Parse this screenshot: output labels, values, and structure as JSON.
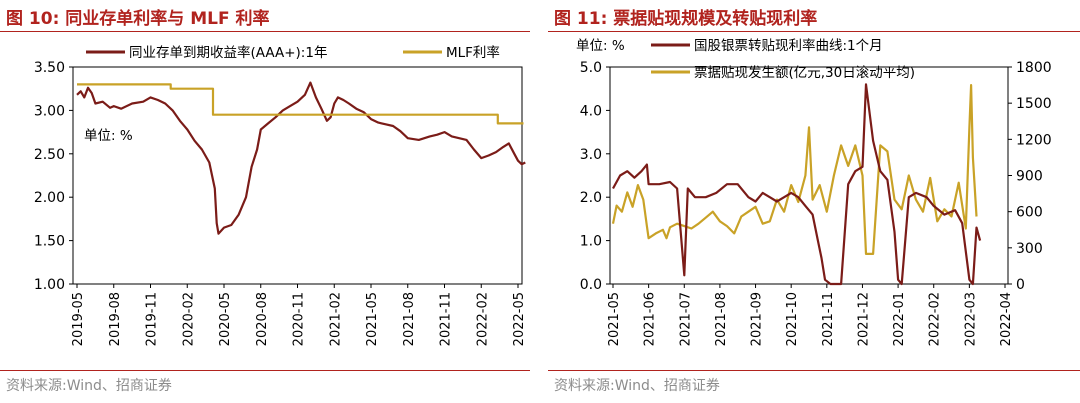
{
  "left": {
    "title": "图 10:  同业存单利率与 MLF 利率",
    "source": "资料来源:Wind、招商证券",
    "unit_label": "单位: %",
    "chart_data": {
      "type": "line",
      "x_labels": [
        "2019-05",
        "2019-08",
        "2019-11",
        "2020-02",
        "2020-05",
        "2020-08",
        "2020-11",
        "2021-02",
        "2021-05",
        "2021-08",
        "2021-11",
        "2022-02",
        "2022-05"
      ],
      "ylim": [
        1.0,
        3.5
      ],
      "y_ticks": [
        "1.00",
        "1.50",
        "2.00",
        "2.50",
        "3.00",
        "3.50"
      ],
      "series": [
        {
          "name": "同业存单到期收益率(AAA+):1年",
          "color": "#7b1c18",
          "values": [
            [
              0,
              3.18
            ],
            [
              0.1,
              3.22
            ],
            [
              0.2,
              3.15
            ],
            [
              0.3,
              3.26
            ],
            [
              0.4,
              3.2
            ],
            [
              0.5,
              3.08
            ],
            [
              0.7,
              3.1
            ],
            [
              0.9,
              3.03
            ],
            [
              1.0,
              3.05
            ],
            [
              1.2,
              3.02
            ],
            [
              1.5,
              3.08
            ],
            [
              1.8,
              3.1
            ],
            [
              2.0,
              3.15
            ],
            [
              2.2,
              3.12
            ],
            [
              2.4,
              3.08
            ],
            [
              2.6,
              3.0
            ],
            [
              2.8,
              2.88
            ],
            [
              3.0,
              2.78
            ],
            [
              3.2,
              2.65
            ],
            [
              3.4,
              2.55
            ],
            [
              3.6,
              2.4
            ],
            [
              3.75,
              2.1
            ],
            [
              3.8,
              1.7
            ],
            [
              3.85,
              1.58
            ],
            [
              4.0,
              1.65
            ],
            [
              4.2,
              1.68
            ],
            [
              4.4,
              1.8
            ],
            [
              4.6,
              2.0
            ],
            [
              4.75,
              2.35
            ],
            [
              4.9,
              2.55
            ],
            [
              5.0,
              2.78
            ],
            [
              5.2,
              2.85
            ],
            [
              5.4,
              2.92
            ],
            [
              5.6,
              3.0
            ],
            [
              5.8,
              3.05
            ],
            [
              6.0,
              3.1
            ],
            [
              6.2,
              3.18
            ],
            [
              6.35,
              3.32
            ],
            [
              6.5,
              3.15
            ],
            [
              6.65,
              3.02
            ],
            [
              6.8,
              2.88
            ],
            [
              6.9,
              2.92
            ],
            [
              7.0,
              3.08
            ],
            [
              7.1,
              3.15
            ],
            [
              7.25,
              3.12
            ],
            [
              7.4,
              3.08
            ],
            [
              7.6,
              3.02
            ],
            [
              7.8,
              2.98
            ],
            [
              8.0,
              2.9
            ],
            [
              8.2,
              2.86
            ],
            [
              8.4,
              2.84
            ],
            [
              8.6,
              2.82
            ],
            [
              8.8,
              2.76
            ],
            [
              9.0,
              2.68
            ],
            [
              9.3,
              2.66
            ],
            [
              9.6,
              2.7
            ],
            [
              9.8,
              2.72
            ],
            [
              10.0,
              2.75
            ],
            [
              10.2,
              2.7
            ],
            [
              10.4,
              2.68
            ],
            [
              10.6,
              2.66
            ],
            [
              10.8,
              2.55
            ],
            [
              11.0,
              2.45
            ],
            [
              11.2,
              2.48
            ],
            [
              11.4,
              2.52
            ],
            [
              11.6,
              2.58
            ],
            [
              11.75,
              2.62
            ],
            [
              11.9,
              2.5
            ],
            [
              12.0,
              2.42
            ],
            [
              12.1,
              2.38
            ],
            [
              12.2,
              2.4
            ]
          ]
        },
        {
          "name": "MLF利率",
          "color": "#c9a227",
          "values": [
            [
              0,
              3.3
            ],
            [
              2.55,
              3.3
            ],
            [
              2.55,
              3.25
            ],
            [
              3.7,
              3.25
            ],
            [
              3.7,
              2.95
            ],
            [
              11.45,
              2.95
            ],
            [
              11.45,
              2.85
            ],
            [
              12.15,
              2.85
            ]
          ]
        }
      ]
    }
  },
  "right": {
    "title": "图 11:  票据贴现规模及转贴现利率",
    "source": "资料来源:Wind、招商证券",
    "unit_label": "单位: %",
    "chart_data": {
      "type": "line",
      "x_labels": [
        "2021-05",
        "2021-06",
        "2021-07",
        "2021-08",
        "2021-09",
        "2021-10",
        "2021-11",
        "2021-12",
        "2022-01",
        "2022-02",
        "2022-03",
        "2022-04"
      ],
      "ylim_left": [
        0.0,
        5.0
      ],
      "y_ticks_left": [
        "0.0",
        "1.0",
        "2.0",
        "3.0",
        "4.0",
        "5.0"
      ],
      "ylim_right": [
        0,
        1800
      ],
      "y_ticks_right": [
        "0",
        "300",
        "600",
        "900",
        "1200",
        "1500",
        "1800"
      ],
      "series": [
        {
          "name": "国股银票转贴现利率曲线:1个月",
          "axis": "left",
          "color": "#7b1c18",
          "values": [
            [
              0,
              2.2
            ],
            [
              0.2,
              2.5
            ],
            [
              0.4,
              2.6
            ],
            [
              0.6,
              2.45
            ],
            [
              0.8,
              2.6
            ],
            [
              0.95,
              2.75
            ],
            [
              1.0,
              2.3
            ],
            [
              1.3,
              2.3
            ],
            [
              1.6,
              2.35
            ],
            [
              1.8,
              2.2
            ],
            [
              1.9,
              1.2
            ],
            [
              2.0,
              0.2
            ],
            [
              2.1,
              2.2
            ],
            [
              2.3,
              2.0
            ],
            [
              2.6,
              2.0
            ],
            [
              2.9,
              2.1
            ],
            [
              3.2,
              2.3
            ],
            [
              3.5,
              2.3
            ],
            [
              3.8,
              2.0
            ],
            [
              4.0,
              1.9
            ],
            [
              4.2,
              2.1
            ],
            [
              4.4,
              2.0
            ],
            [
              4.6,
              1.9
            ],
            [
              4.8,
              2.0
            ],
            [
              5.0,
              2.1
            ],
            [
              5.2,
              2.0
            ],
            [
              5.4,
              1.8
            ],
            [
              5.6,
              1.6
            ],
            [
              5.75,
              1.0
            ],
            [
              5.85,
              0.6
            ],
            [
              5.95,
              0.1
            ],
            [
              6.1,
              0.0
            ],
            [
              6.4,
              0.0
            ],
            [
              6.6,
              2.3
            ],
            [
              6.8,
              2.6
            ],
            [
              7.0,
              2.7
            ],
            [
              7.1,
              4.6
            ],
            [
              7.3,
              3.3
            ],
            [
              7.5,
              2.6
            ],
            [
              7.7,
              2.4
            ],
            [
              7.9,
              1.2
            ],
            [
              8.0,
              0.1
            ],
            [
              8.1,
              0.0
            ],
            [
              8.3,
              2.0
            ],
            [
              8.5,
              2.1
            ],
            [
              8.8,
              2.0
            ],
            [
              9.0,
              1.8
            ],
            [
              9.3,
              1.6
            ],
            [
              9.6,
              1.7
            ],
            [
              9.8,
              1.4
            ],
            [
              10.0,
              0.1
            ],
            [
              10.1,
              0.0
            ],
            [
              10.2,
              1.3
            ],
            [
              10.3,
              1.0
            ]
          ]
        },
        {
          "name": "票据贴现发生额(亿元,30日滚动平均)",
          "axis": "right",
          "color": "#c9a227",
          "values": [
            [
              0,
              500
            ],
            [
              0.1,
              650
            ],
            [
              0.25,
              600
            ],
            [
              0.4,
              760
            ],
            [
              0.55,
              640
            ],
            [
              0.7,
              820
            ],
            [
              0.85,
              700
            ],
            [
              0.95,
              480
            ],
            [
              1.0,
              380
            ],
            [
              1.2,
              420
            ],
            [
              1.4,
              450
            ],
            [
              1.5,
              380
            ],
            [
              1.6,
              470
            ],
            [
              1.8,
              500
            ],
            [
              2.0,
              480
            ],
            [
              2.2,
              460
            ],
            [
              2.4,
              500
            ],
            [
              2.6,
              550
            ],
            [
              2.8,
              600
            ],
            [
              3.0,
              520
            ],
            [
              3.2,
              480
            ],
            [
              3.4,
              420
            ],
            [
              3.6,
              560
            ],
            [
              3.8,
              600
            ],
            [
              4.0,
              640
            ],
            [
              4.2,
              500
            ],
            [
              4.4,
              520
            ],
            [
              4.6,
              700
            ],
            [
              4.8,
              600
            ],
            [
              5.0,
              820
            ],
            [
              5.2,
              680
            ],
            [
              5.4,
              900
            ],
            [
              5.5,
              1300
            ],
            [
              5.6,
              700
            ],
            [
              5.8,
              820
            ],
            [
              6.0,
              600
            ],
            [
              6.2,
              900
            ],
            [
              6.4,
              1150
            ],
            [
              6.6,
              980
            ],
            [
              6.8,
              1150
            ],
            [
              7.0,
              900
            ],
            [
              7.1,
              250
            ],
            [
              7.3,
              250
            ],
            [
              7.5,
              1150
            ],
            [
              7.7,
              1100
            ],
            [
              7.9,
              700
            ],
            [
              8.1,
              620
            ],
            [
              8.3,
              900
            ],
            [
              8.5,
              700
            ],
            [
              8.7,
              600
            ],
            [
              8.9,
              880
            ],
            [
              9.1,
              520
            ],
            [
              9.3,
              620
            ],
            [
              9.5,
              560
            ],
            [
              9.7,
              840
            ],
            [
              9.9,
              460
            ],
            [
              10.0,
              1300
            ],
            [
              10.05,
              1650
            ],
            [
              10.1,
              1050
            ],
            [
              10.2,
              560
            ]
          ]
        }
      ]
    }
  }
}
